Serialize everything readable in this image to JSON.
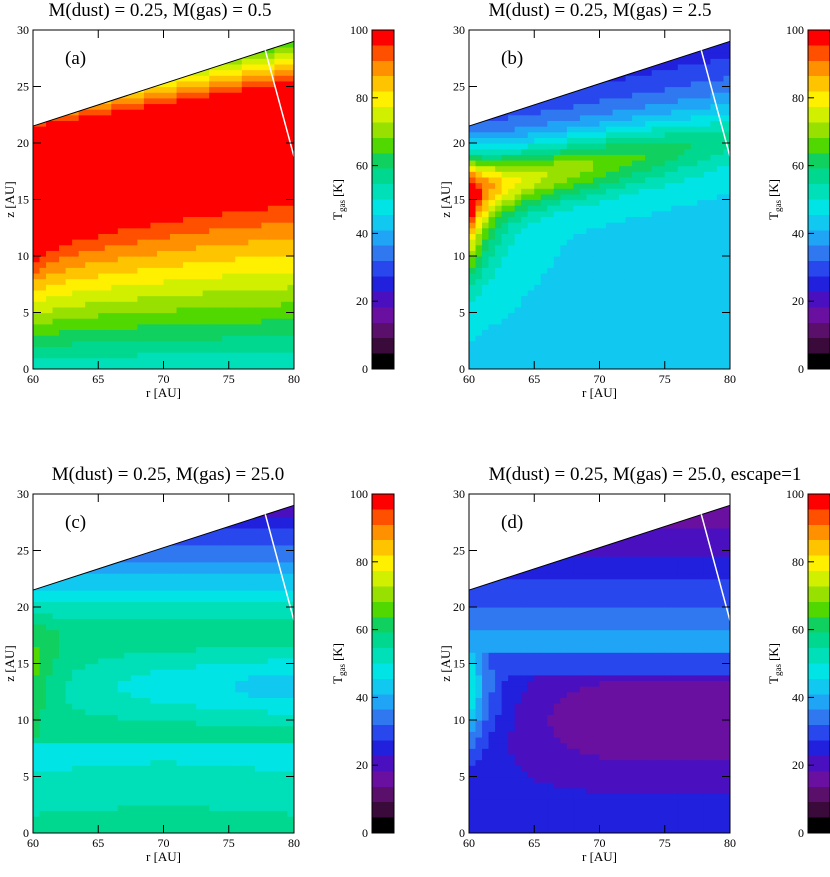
{
  "chart_data": [
    {
      "type": "contour",
      "title": "M(dust) = 0.25, M(gas) = 0.5",
      "panel_label": "(a)",
      "xlabel": "r [AU]",
      "ylabel": "z [AU]",
      "xlim": [
        60,
        80
      ],
      "ylim": [
        0,
        30
      ],
      "x_ticks": [
        "60",
        "65",
        "70",
        "75",
        "80"
      ],
      "y_ticks": [
        "0",
        "5",
        "10",
        "15",
        "20",
        "25",
        "30"
      ],
      "surface_upper_z": [
        21.5,
        29
      ],
      "hot_layer_z": {
        "lower": [
          10,
          16
        ],
        "upper": [
          21,
          25
        ]
      },
      "midplane_T_K": 60,
      "colorbar": {
        "label": "T",
        "label_sub": "gas",
        "label_unit": "[K]",
        "range": [
          0,
          100
        ],
        "ticks": [
          "0",
          "20",
          "40",
          "60",
          "80",
          "100"
        ]
      }
    },
    {
      "type": "contour",
      "title": "M(dust) = 0.25, M(gas) = 2.5",
      "panel_label": "(b)",
      "xlabel": "r [AU]",
      "ylabel": "z [AU]",
      "xlim": [
        60,
        80
      ],
      "ylim": [
        0,
        30
      ],
      "x_ticks": [
        "60",
        "65",
        "70",
        "75",
        "80"
      ],
      "y_ticks": [
        "0",
        "5",
        "10",
        "15",
        "20",
        "25",
        "30"
      ],
      "surface_upper_z": [
        21.5,
        29
      ],
      "midplane_T_K": 45,
      "peak_T_K": 90,
      "colorbar": {
        "label": "T",
        "label_sub": "gas",
        "label_unit": "[K]",
        "range": [
          0,
          100
        ],
        "ticks": [
          "0",
          "20",
          "40",
          "60",
          "80",
          "100"
        ]
      }
    },
    {
      "type": "contour",
      "title": "M(dust) = 0.25, M(gas) = 25.0",
      "panel_label": "(c)",
      "xlabel": "r [AU]",
      "ylabel": "z [AU]",
      "xlim": [
        60,
        80
      ],
      "ylim": [
        0,
        30
      ],
      "x_ticks": [
        "60",
        "65",
        "70",
        "75",
        "80"
      ],
      "y_ticks": [
        "0",
        "5",
        "10",
        "15",
        "20",
        "25",
        "30"
      ],
      "surface_upper_z": [
        21.5,
        29
      ],
      "midplane_T_K": 55,
      "min_T_K": 30,
      "colorbar": {
        "label": "T",
        "label_sub": "gas",
        "label_unit": "[K]",
        "range": [
          0,
          100
        ],
        "ticks": [
          "0",
          "20",
          "40",
          "60",
          "80",
          "100"
        ]
      }
    },
    {
      "type": "contour",
      "title": "M(dust) = 0.25, M(gas) = 25.0, escape=1",
      "panel_label": "(d)",
      "xlabel": "r [AU]",
      "ylabel": "z [AU]",
      "xlim": [
        60,
        80
      ],
      "ylim": [
        0,
        30
      ],
      "x_ticks": [
        "60",
        "65",
        "70",
        "75",
        "80"
      ],
      "y_ticks": [
        "0",
        "5",
        "10",
        "15",
        "20",
        "25",
        "30"
      ],
      "surface_upper_z": [
        21.5,
        29
      ],
      "midplane_T_K": 25,
      "min_T_K": 13,
      "colorbar": {
        "label": "T",
        "label_sub": "gas",
        "label_unit": "[K]",
        "range": [
          0,
          100
        ],
        "ticks": [
          "0",
          "20",
          "40",
          "60",
          "80",
          "100"
        ]
      }
    }
  ],
  "colormap": [
    "#000000",
    "#3a0a3a",
    "#5a0f6a",
    "#6a10a0",
    "#4a10c0",
    "#2020dd",
    "#2848ee",
    "#3078f0",
    "#20a4f5",
    "#10c8f0",
    "#00e4e6",
    "#00e0b8",
    "#00d890",
    "#10d060",
    "#50d800",
    "#98e000",
    "#d0f000",
    "#fff000",
    "#ffc400",
    "#ff9000",
    "#ff5000",
    "#ff0000"
  ]
}
